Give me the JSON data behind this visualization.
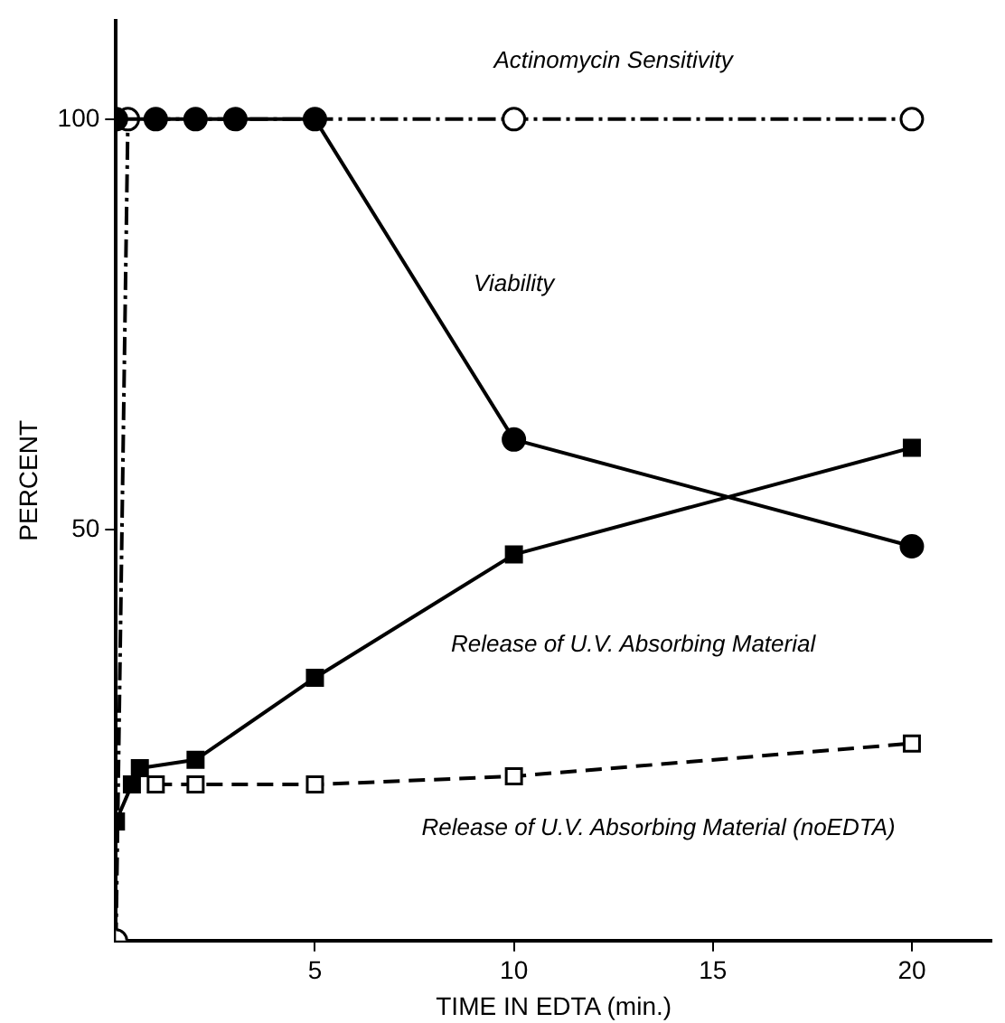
{
  "chart_data": {
    "type": "line",
    "xlabel": "TIME IN EDTA (min.)",
    "ylabel": "PERCENT",
    "xlim": [
      0,
      22
    ],
    "xticks": [
      5,
      10,
      15,
      20
    ],
    "ylim": [
      0,
      112
    ],
    "yticks": [
      50,
      100
    ],
    "grid": false,
    "legend": false,
    "series": [
      {
        "name": "Viability",
        "color": "#000000",
        "marker": "circle",
        "line_style": "solid",
        "x": [
          0,
          1,
          2,
          3,
          5,
          10,
          20
        ],
        "values": [
          100,
          100,
          100,
          100,
          100,
          61,
          48
        ]
      },
      {
        "name": "Actinomycin Sensitivity",
        "color": "#000000",
        "marker": "circle",
        "line_style": "dotted",
        "x": [
          0,
          0.3,
          10,
          20
        ],
        "values": [
          0,
          100,
          100,
          100
        ]
      },
      {
        "name": "Release of U.V. Absorbing Material",
        "color": "#000000",
        "marker": "square",
        "line_style": "solid",
        "x": [
          0,
          0.4,
          0.6,
          2,
          5,
          10,
          20
        ],
        "values": [
          14.5,
          19,
          21,
          22,
          32,
          47,
          60
        ]
      },
      {
        "name": "Release of U.V. Absorbing Material (noEDTA)",
        "color": "#000000",
        "marker": "square",
        "line_style": "dashed",
        "x": [
          1,
          2,
          5,
          10,
          20
        ],
        "values": [
          19,
          19,
          19,
          20,
          24
        ]
      }
    ]
  }
}
